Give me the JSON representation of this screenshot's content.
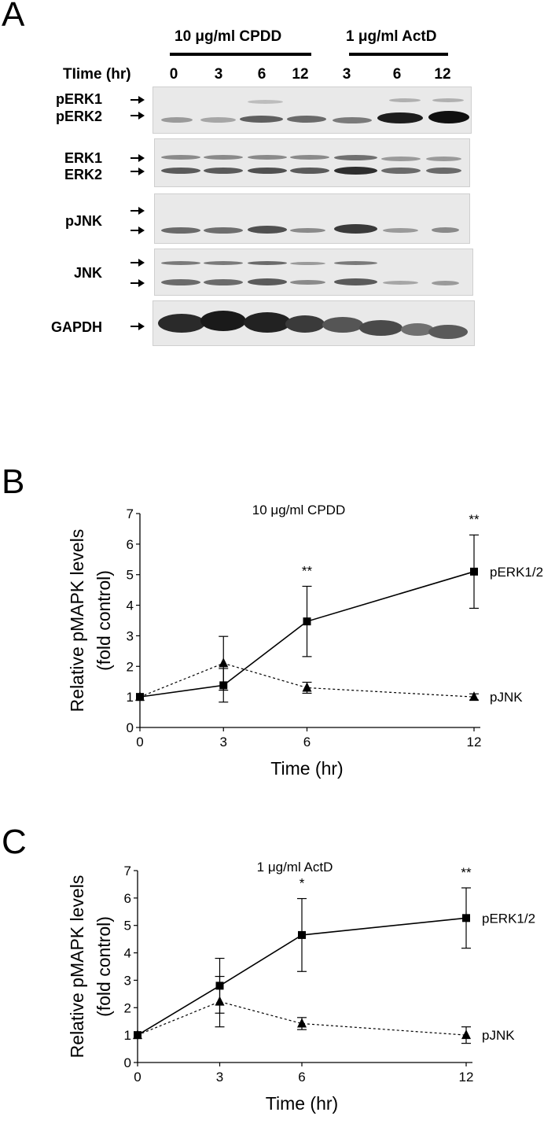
{
  "panel_a": {
    "letter": "A",
    "group1_label": "10 μg/ml CPDD",
    "group2_label": "1 μg/ml ActD",
    "time_label": "TIime (hr)",
    "lanes": [
      "0",
      "3",
      "6",
      "12",
      "3",
      "6",
      "12"
    ],
    "rows": [
      {
        "labels": [
          "pERK1",
          "pERK2"
        ]
      },
      {
        "labels": [
          "ERK1",
          "ERK2"
        ]
      },
      {
        "labels": [
          "pJNK"
        ]
      },
      {
        "labels": [
          "JNK"
        ]
      },
      {
        "labels": [
          "GAPDH"
        ]
      }
    ]
  },
  "chart_data": [
    {
      "panel": "B",
      "type": "line",
      "title": "10 μg/ml CPDD",
      "xlabel": "Time (hr)",
      "ylabel": "Relative pMAPK levels (fold control)",
      "x": [
        0,
        3,
        6,
        12
      ],
      "xticks": [
        "0",
        "3",
        "6",
        "12"
      ],
      "yticks": [
        "0",
        "1",
        "2",
        "3",
        "4",
        "5",
        "6",
        "7"
      ],
      "ylim": [
        0,
        7
      ],
      "series": [
        {
          "name": "pERK1/2",
          "marker": "square",
          "line": "solid",
          "values": [
            1.0,
            1.38,
            3.47,
            5.1
          ],
          "errors": [
            0,
            0.55,
            1.15,
            1.2
          ]
        },
        {
          "name": "pJNK",
          "marker": "triangle",
          "line": "dotted",
          "values": [
            1.0,
            2.1,
            1.3,
            1.0
          ],
          "errors": [
            0,
            0.88,
            0.18,
            0.1
          ]
        }
      ],
      "annotations": [
        {
          "x": 6,
          "text": "**"
        },
        {
          "x": 12,
          "text": "**"
        }
      ]
    },
    {
      "panel": "C",
      "type": "line",
      "title": "1 μg/ml ActD",
      "xlabel": "Time (hr)",
      "ylabel": "Relative pMAPK levels (fold control)",
      "x": [
        0,
        3,
        6,
        12
      ],
      "xticks": [
        "0",
        "3",
        "6",
        "12"
      ],
      "yticks": [
        "0",
        "1",
        "2",
        "3",
        "4",
        "5",
        "6",
        "7"
      ],
      "ylim": [
        0,
        7
      ],
      "series": [
        {
          "name": "pERK1/2",
          "marker": "square",
          "line": "solid",
          "values": [
            1.0,
            2.8,
            4.65,
            5.27
          ],
          "errors": [
            0,
            1.0,
            1.33,
            1.1
          ]
        },
        {
          "name": "pJNK",
          "marker": "triangle",
          "line": "dotted",
          "values": [
            1.0,
            2.22,
            1.42,
            1.0
          ],
          "errors": [
            0,
            0.92,
            0.22,
            0.3
          ]
        }
      ],
      "annotations": [
        {
          "x": 6,
          "text": "*"
        },
        {
          "x": 12,
          "text": "**"
        }
      ]
    }
  ]
}
